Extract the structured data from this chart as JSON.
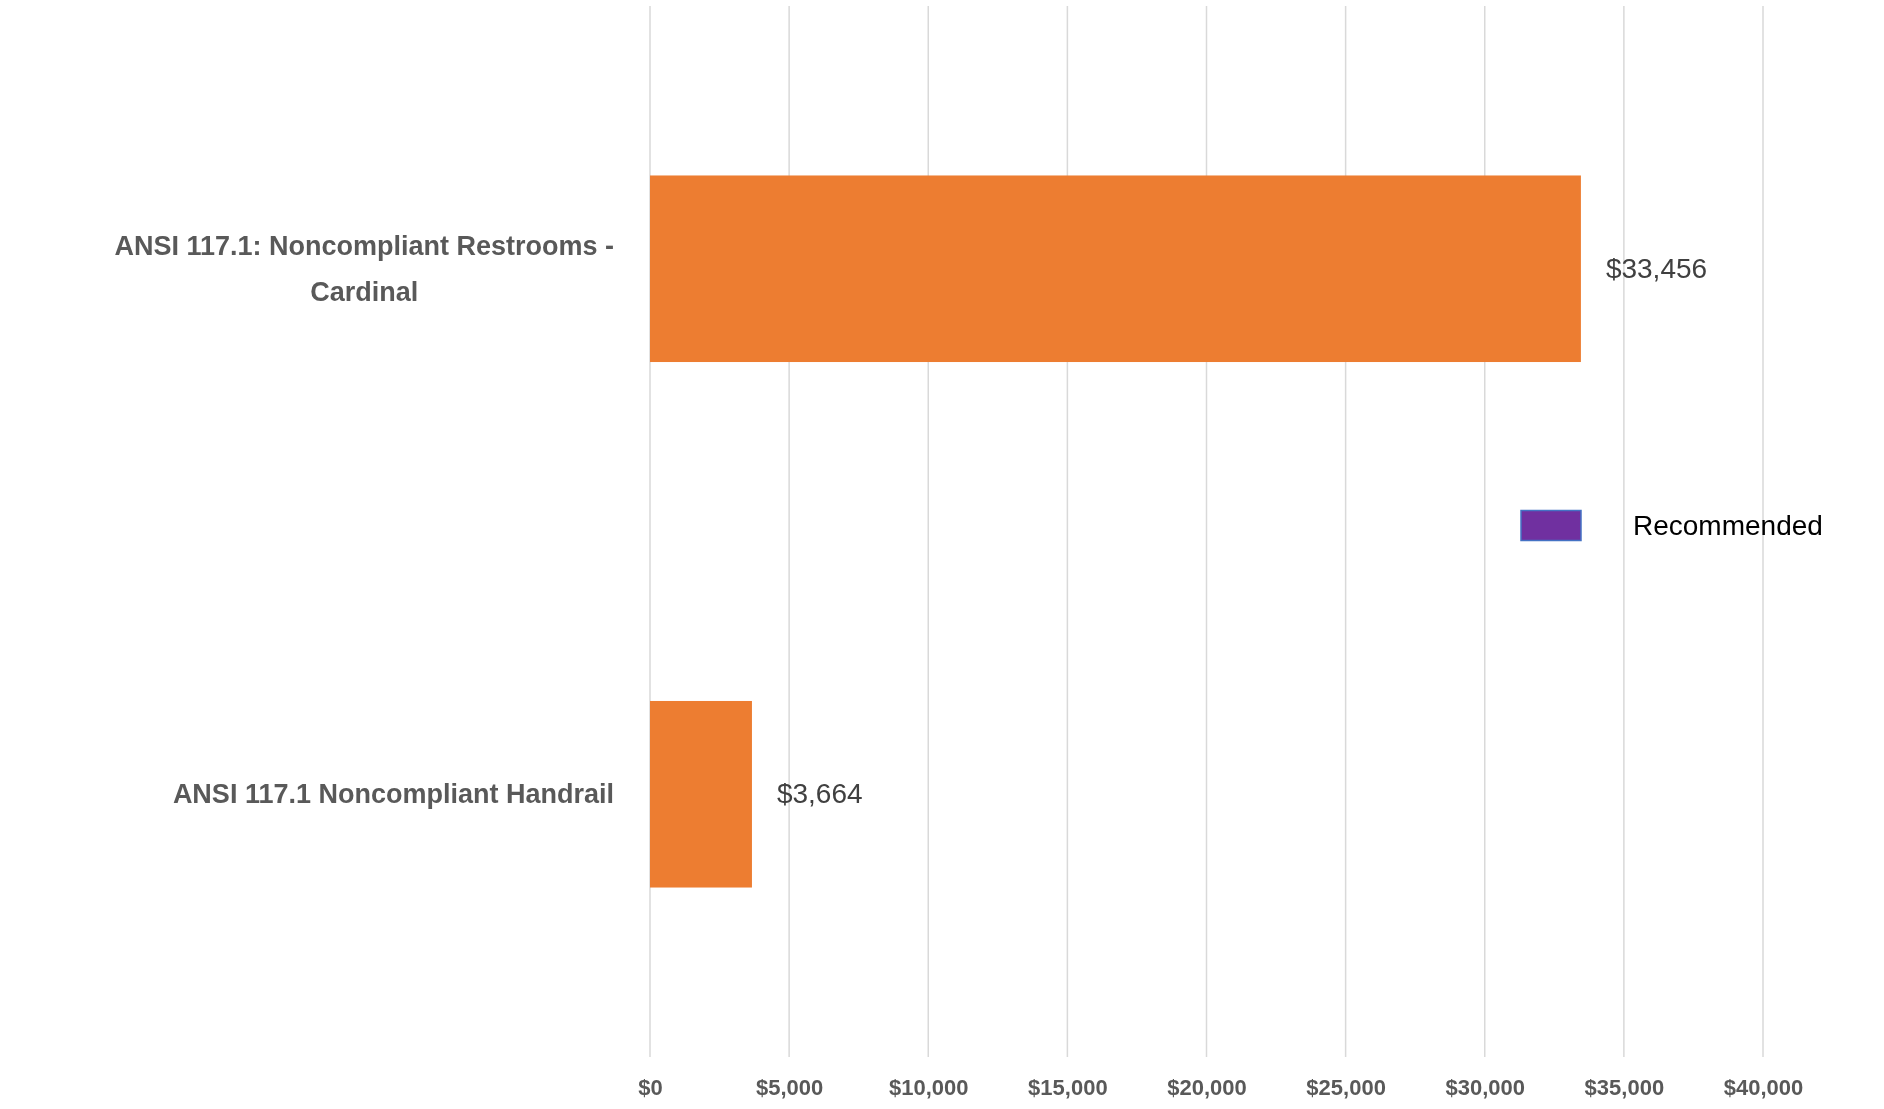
{
  "chart_data": {
    "type": "bar",
    "orientation": "horizontal",
    "categories": [
      "ANSI 117.1: Noncompliant Restrooms - Cardinal",
      "ANSI 117.1 Noncompliant Handrail"
    ],
    "series": [
      {
        "color": "#ed7d31",
        "values": [
          33456,
          3664
        ],
        "value_labels": [
          "$33,456",
          "$3,664"
        ]
      },
      {
        "name": "Recommended",
        "color": "#7030a0",
        "values": [
          null,
          null
        ]
      }
    ],
    "xlim": [
      0,
      40000
    ],
    "xticks": [
      {
        "value": 0,
        "label": "$0"
      },
      {
        "value": 5000,
        "label": "$5,000"
      },
      {
        "value": 10000,
        "label": "$10,000"
      },
      {
        "value": 15000,
        "label": "$15,000"
      },
      {
        "value": 20000,
        "label": "$20,000"
      },
      {
        "value": 25000,
        "label": "$25,000"
      },
      {
        "value": 30000,
        "label": "$30,000"
      },
      {
        "value": 35000,
        "label": "$35,000"
      },
      {
        "value": 40000,
        "label": "$40,000"
      }
    ],
    "grid": "x",
    "legend": "right"
  }
}
